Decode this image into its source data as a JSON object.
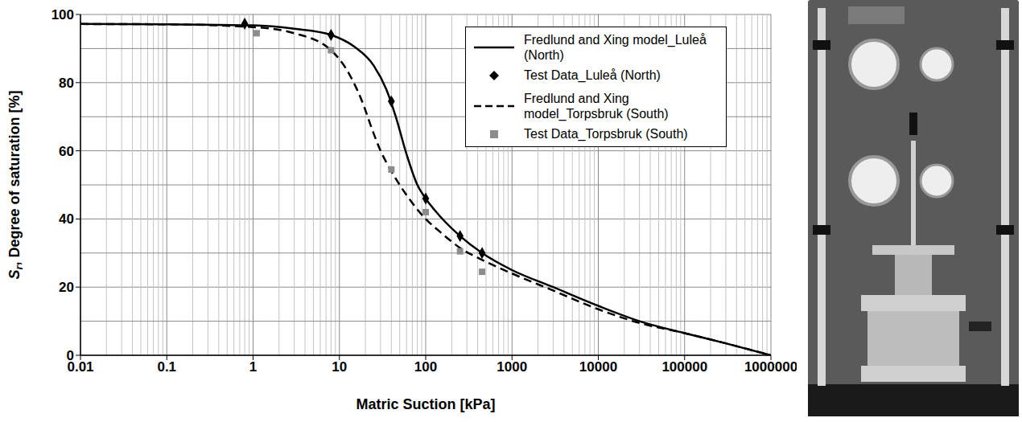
{
  "chart_data": {
    "type": "line",
    "x_label": "Matric Suction [kPa]",
    "y_label": "Sr, Degree of saturation [%]",
    "xlim": [
      0.01,
      1000000
    ],
    "xticks": [
      0.01,
      0.1,
      1,
      10,
      100,
      1000,
      10000,
      100000,
      1000000
    ],
    "ylim": [
      0,
      100
    ],
    "yticks": [
      0,
      20,
      40,
      60,
      80,
      100
    ],
    "log": "x",
    "grid": true,
    "legend": "upper right",
    "series": [
      {
        "name": "Fredlund and Xing model_Luleå (North)",
        "type": "line",
        "color": "#000000",
        "line_style": "solid",
        "x": [
          0.01,
          0.1,
          1,
          3,
          8,
          15,
          25,
          35,
          45,
          60,
          80,
          100,
          150,
          250,
          450,
          1000,
          3000,
          10000,
          30000,
          100000,
          300000,
          1000000
        ],
        "values": [
          97.2,
          97.1,
          96.8,
          95.8,
          94,
          90.5,
          85,
          78,
          70,
          59,
          50,
          46,
          40.5,
          35,
          30,
          25,
          20,
          14.5,
          10,
          6.5,
          3.5,
          0
        ]
      },
      {
        "name": "Test Data_Luleå (North)",
        "type": "scatter",
        "color": "#000000",
        "marker": "diamond",
        "x": [
          0.8,
          8,
          40,
          100,
          250,
          450
        ],
        "values": [
          97.3,
          94,
          74.5,
          46,
          35,
          30
        ]
      },
      {
        "name": "Fredlund and Xing model_Torpsbruk (South)",
        "type": "line",
        "color": "#000000",
        "line_style": "dashed",
        "x": [
          0.01,
          0.1,
          1,
          3,
          8,
          12,
          18,
          25,
          30,
          40,
          60,
          100,
          150,
          250,
          450,
          1000,
          3000,
          10000,
          30000,
          100000,
          300000,
          1000000
        ],
        "values": [
          97.2,
          97.1,
          96.3,
          94.5,
          89.5,
          84,
          75,
          65,
          60,
          54,
          47,
          40,
          36,
          31.5,
          28,
          24,
          19,
          13.5,
          9.5,
          6.5,
          3.5,
          0
        ]
      },
      {
        "name": "Test Data_Torpsbruk (South)",
        "type": "scatter",
        "color": "#8c8c8c",
        "marker": "square",
        "x": [
          1.1,
          8,
          40,
          100,
          250,
          450
        ],
        "values": [
          94.5,
          89.5,
          54.5,
          42,
          30.5,
          24.5
        ]
      }
    ]
  }
}
